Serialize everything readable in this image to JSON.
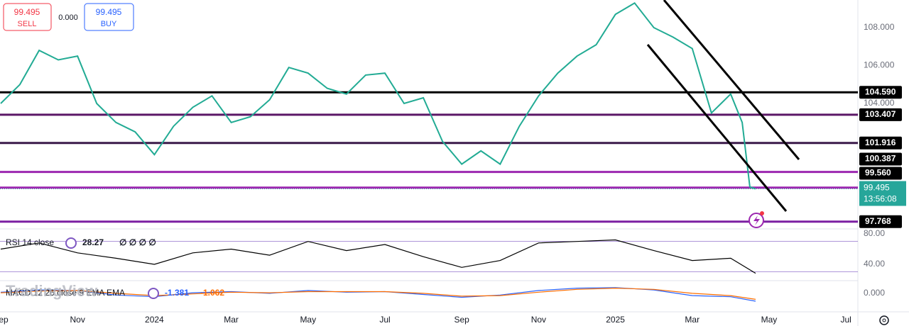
{
  "chart_data": [
    {
      "type": "line",
      "pane": "price",
      "x": [
        0,
        0.5,
        1,
        1.5,
        2,
        2.5,
        3,
        3.5,
        4,
        4.5,
        5,
        5.5,
        6,
        6.5,
        7,
        7.5,
        8,
        8.5,
        9,
        9.5,
        10,
        10.5,
        11,
        11.5,
        12,
        12.5,
        13,
        13.5,
        14,
        14.5,
        15,
        15.5,
        16,
        16.5,
        17,
        17.5,
        18,
        18.5,
        19,
        19.3,
        19.5,
        19.65
      ],
      "series": [
        {
          "color": "#22ab94",
          "values": [
            104.0,
            105.0,
            106.8,
            106.3,
            106.5,
            104.0,
            103.0,
            102.5,
            101.3,
            102.8,
            103.8,
            104.4,
            103.0,
            103.3,
            104.2,
            105.9,
            105.6,
            104.8,
            104.5,
            105.5,
            105.6,
            104.0,
            104.3,
            102.0,
            100.8,
            101.5,
            100.8,
            102.8,
            104.4,
            105.6,
            106.5,
            107.1,
            108.7,
            109.3,
            108.0,
            107.5,
            106.9,
            103.5,
            104.5,
            103.0,
            99.6,
            99.495
          ]
        }
      ],
      "xlim": [
        0,
        22.3
      ],
      "xticks": [
        {
          "value": 0,
          "label": "Sep"
        },
        {
          "value": 2,
          "label": "Nov"
        },
        {
          "value": 4,
          "label": "2024"
        },
        {
          "value": 6,
          "label": "Mar"
        },
        {
          "value": 8,
          "label": "May"
        },
        {
          "value": 10,
          "label": "Jul"
        },
        {
          "value": 12,
          "label": "Sep"
        },
        {
          "value": 14,
          "label": "Nov"
        },
        {
          "value": 16,
          "label": "2025"
        },
        {
          "value": 18,
          "label": "Mar"
        },
        {
          "value": 20,
          "label": "May"
        },
        {
          "value": 22,
          "label": "Jul"
        }
      ],
      "ylim": [
        97.42,
        109.46
      ],
      "yticks": [
        {
          "value": 104,
          "label": "104.000"
        },
        {
          "value": 106,
          "label": "106.000"
        },
        {
          "value": 108,
          "label": "108.000"
        }
      ],
      "levels": [
        {
          "value": 104.59,
          "label": "104.590",
          "color": "#000000"
        },
        {
          "value": 103.407,
          "label": "103.407",
          "color": "#5b1766"
        },
        {
          "value": 101.916,
          "label": "101.916",
          "color": "#3b1a4a"
        },
        {
          "value": 100.387,
          "label": "100.387",
          "color": "#9c27b0"
        },
        {
          "value": 99.56,
          "label": "99.560",
          "color": "#9c27b0"
        },
        {
          "value": 97.768,
          "label": "97.768",
          "color": "#7b1fa2"
        }
      ],
      "current_price": 99.495,
      "current_color": "#26a69a",
      "countdown": "13:56:08"
    },
    {
      "type": "line",
      "pane": "rsi",
      "name": "RSI 14 close",
      "x": [
        0,
        1,
        2,
        3,
        4,
        5,
        6,
        7,
        8,
        9,
        10,
        11,
        12,
        13,
        14,
        15,
        16,
        17,
        18,
        19,
        19.65
      ],
      "series": [
        {
          "color": "#000000",
          "values": [
            60,
            68,
            55,
            48,
            40,
            55,
            60,
            52,
            70,
            58,
            66,
            50,
            36,
            45,
            68,
            70,
            72,
            58,
            45,
            48,
            28.27
          ]
        }
      ],
      "ylim": [
        19.5,
        84.6
      ],
      "yticks": [
        {
          "value": 40,
          "label": "40.00"
        },
        {
          "value": 80,
          "label": "80.00"
        }
      ],
      "bands": [
        70,
        30
      ],
      "band_color": "#7e57c2",
      "na_values": "∅ ∅ ∅ ∅"
    },
    {
      "type": "line",
      "pane": "macd",
      "name": "MACD 12 26 close 9 EMA EMA",
      "x": [
        0,
        1,
        2,
        3,
        4,
        5,
        6,
        7,
        8,
        9,
        10,
        11,
        12,
        13,
        14,
        15,
        16,
        17,
        18,
        19,
        19.65
      ],
      "series": [
        {
          "color": "#2962ff",
          "values": [
            0.2,
            0.6,
            0.5,
            -0.3,
            -0.6,
            0.1,
            0.3,
            0.0,
            0.5,
            0.2,
            0.3,
            -0.2,
            -0.7,
            -0.3,
            0.5,
            0.9,
            1.0,
            0.6,
            -0.4,
            -0.6,
            -1.381
          ]
        },
        {
          "color": "#ff6d00",
          "values": [
            0.1,
            0.4,
            0.5,
            0.0,
            -0.4,
            -0.1,
            0.2,
            0.1,
            0.3,
            0.3,
            0.3,
            0.0,
            -0.5,
            -0.4,
            0.2,
            0.7,
            0.9,
            0.7,
            0.0,
            -0.4,
            -1.062
          ]
        }
      ],
      "ylim": [
        -3.25,
        2.1
      ],
      "yticks": [
        {
          "value": 0,
          "label": "0.000"
        }
      ]
    }
  ],
  "ui": {
    "sell_price": "99.495",
    "sell": "SELL",
    "spread": "0.000",
    "buy_price": "99.495",
    "buy": "BUY",
    "watermark": "TradingView"
  }
}
